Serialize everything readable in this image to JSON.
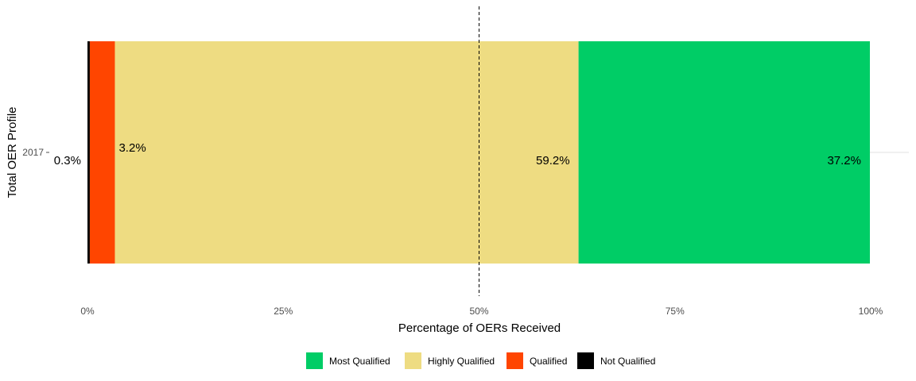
{
  "chart_data": {
    "type": "bar",
    "orientation": "horizontal-stacked",
    "xlabel": "Percentage of OERs Received",
    "ylabel": "Total OER Profile",
    "categories": [
      "2017"
    ],
    "x_ticks": [
      "0%",
      "25%",
      "50%",
      "75%",
      "100%"
    ],
    "xlim": [
      0,
      100
    ],
    "reference_line": {
      "x": 50,
      "style": "dashed"
    },
    "grid": "horizontal major line only",
    "legend_position": "bottom",
    "series": [
      {
        "name": "Not Qualified",
        "values": [
          0.3
        ],
        "label": "0.3%",
        "color": "#000000"
      },
      {
        "name": "Qualified",
        "values": [
          3.2
        ],
        "label": "3.2%",
        "color": "#FF4500"
      },
      {
        "name": "Highly Qualified",
        "values": [
          59.2
        ],
        "label": "59.2%",
        "color": "#EEDC82"
      },
      {
        "name": "Most Qualified",
        "values": [
          37.2
        ],
        "label": "37.2%",
        "color": "#00CD66"
      }
    ],
    "legend_order": [
      "Most Qualified",
      "Highly Qualified",
      "Qualified",
      "Not Qualified"
    ]
  }
}
